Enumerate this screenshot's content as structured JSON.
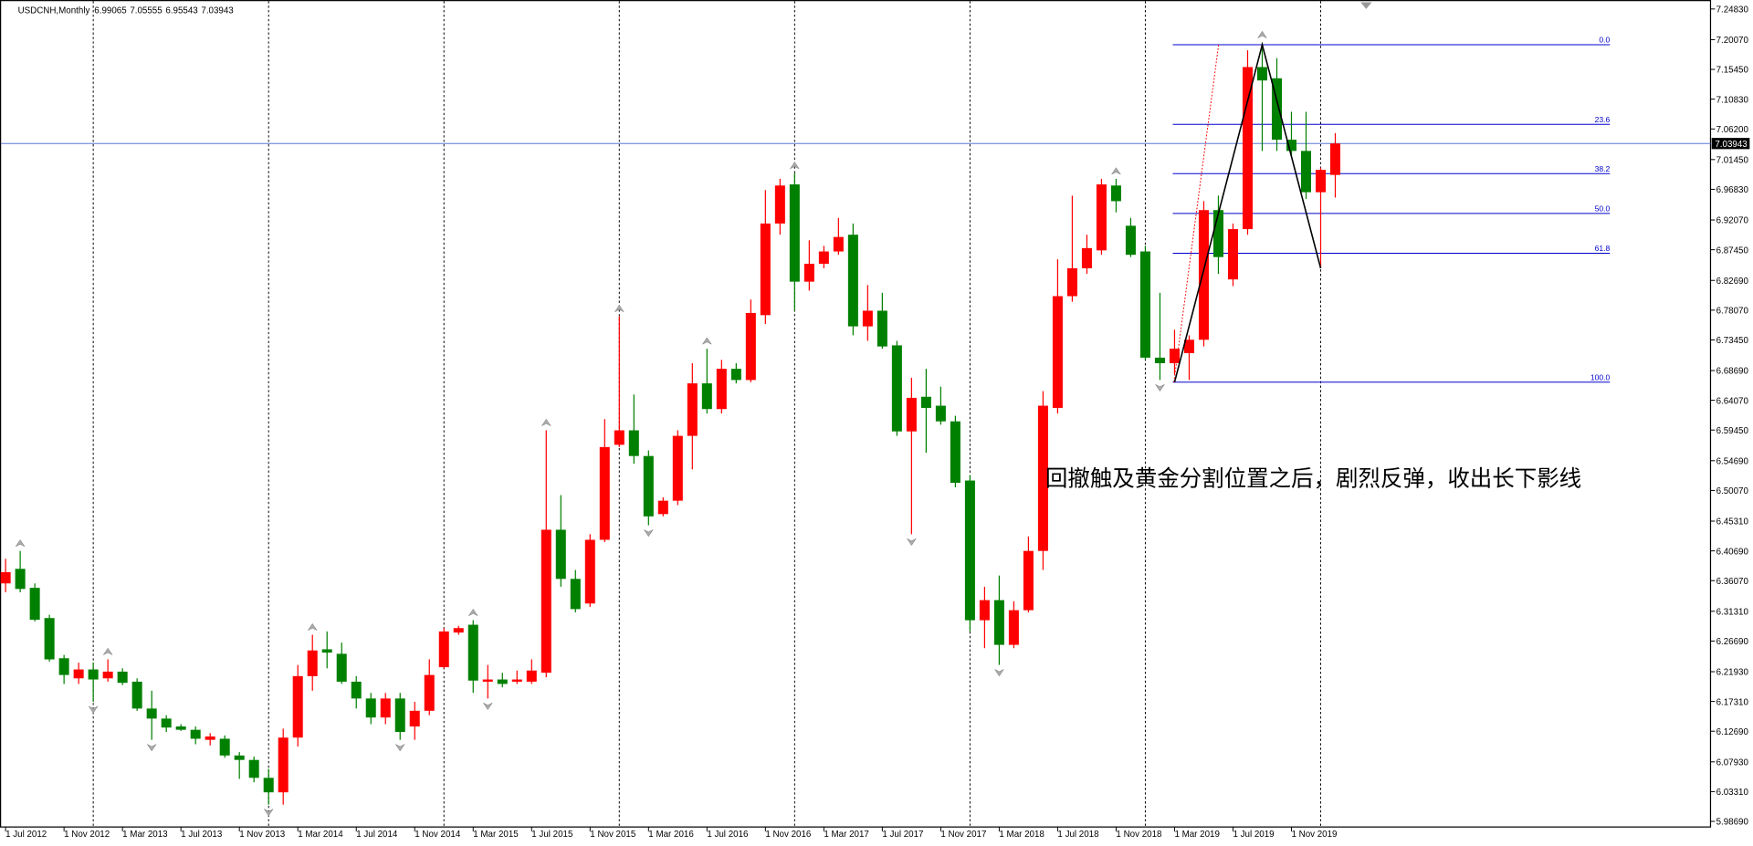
{
  "chart_data": {
    "type": "candlestick",
    "symbol": "USDCNH,Monthly",
    "annotation": "回撤触及黄金分割位置之后，剧烈反弹，收出长下影线",
    "up_color": "#ff0000",
    "down_color": "#008000",
    "categories": [
      "1 Jul 2012",
      null,
      null,
      null,
      "1 Nov 2012",
      null,
      null,
      null,
      "1 Mar 2013",
      null,
      null,
      null,
      "1 Jul 2013",
      null,
      null,
      null,
      "1 Nov 2013",
      null,
      null,
      null,
      "1 Mar 2014",
      null,
      null,
      null,
      "1 Jul 2014",
      null,
      null,
      null,
      "1 Nov 2014",
      null,
      null,
      null,
      "1 Mar 2015",
      null,
      null,
      null,
      "1 Jul 2015",
      null,
      null,
      null,
      "1 Nov 2015",
      null,
      null,
      null,
      "1 Mar 2016",
      null,
      null,
      null,
      "1 Jul 2016",
      null,
      null,
      null,
      "1 Nov 2016",
      null,
      null,
      null,
      "1 Mar 2017",
      null,
      null,
      null,
      "1 Jul 2017",
      null,
      null,
      null,
      "1 Nov 2017",
      null,
      null,
      null,
      "1 Mar 2018",
      null,
      null,
      null,
      "1 Jul 2018",
      null,
      null,
      null,
      "1 Nov 2018",
      null,
      null,
      null,
      "1 Mar 2019",
      null,
      null,
      null,
      "1 Jul 2019",
      null,
      null,
      null,
      "1 Nov 2019",
      null,
      null,
      null
    ],
    "open": [
      6.3564,
      6.379,
      6.3495,
      6.3026,
      6.2402,
      6.209,
      6.2228,
      6.209,
      6.2194,
      6.2038,
      6.1621,
      6.1465,
      6.1343,
      6.1291,
      6.1135,
      6.1152,
      6.0892,
      6.0823,
      6.0545,
      6.032,
      6.117,
      6.2124,
      6.2541,
      6.2471,
      6.2038,
      6.1777,
      6.1482,
      6.1777,
      6.1343,
      6.1586,
      6.2263,
      6.2801,
      6.2922,
      6.2038,
      6.2072,
      6.2038,
      6.2038,
      6.2177,
      6.4397,
      6.3634,
      6.3252,
      6.4241,
      6.5716,
      6.5941,
      6.5542,
      6.464,
      6.4848,
      6.5855,
      6.667,
      6.6271,
      6.6896,
      6.6722,
      6.7729,
      6.9152,
      6.9759,
      6.8249,
      6.8527,
      6.8718,
      6.8978,
      6.7555,
      6.7798,
      6.726,
      6.5924,
      6.6462,
      6.6323,
      6.608,
      6.5161,
      6.2992,
      6.3304,
      6.261,
      6.3148,
      6.4068,
      6.6289,
      6.8024,
      6.8457,
      6.8735,
      6.9742,
      6.9117,
      6.8718,
      6.7069,
      6.6983,
      6.7139,
      6.7347,
      6.936,
      6.8284,
      6.9065,
      7.1581,
      7.1407,
      7.0453,
      7.0279,
      6.9638,
      6.99065
    ],
    "high": [
      6.3946,
      6.4068,
      6.3564,
      6.3078,
      6.2454,
      6.2333,
      6.2333,
      6.2385,
      6.2246,
      6.209,
      6.1898,
      6.1517,
      6.1378,
      6.1343,
      6.1239,
      6.1204,
      6.0944,
      6.0875,
      6.0684,
      6.1309,
      6.2298,
      6.2766,
      6.2818,
      6.2645,
      6.2124,
      6.1864,
      6.1864,
      6.1864,
      6.1725,
      6.2385,
      6.287,
      6.2905,
      6.2992,
      6.2298,
      6.2177,
      6.2211,
      6.2385,
      6.5941,
      6.4935,
      6.3773,
      6.4328,
      6.6115,
      6.7711,
      6.6497,
      6.5629,
      6.49,
      6.5941,
      6.6983,
      6.7208,
      6.7035,
      6.6983,
      6.7972,
      6.9672,
      6.9846,
      6.9933,
      6.8891,
      6.8805,
      6.9239,
      6.9152,
      6.8197,
      6.8076,
      6.733,
      6.6757,
      6.6896,
      6.6619,
      6.6167,
      6.5247,
      6.3512,
      6.3686,
      6.3287,
      6.4293,
      6.6549,
      6.8596,
      6.9585,
      6.8978,
      6.9846,
      6.9846,
      6.9239,
      6.8805,
      6.8076,
      6.7503,
      6.7416,
      6.9499,
      6.9585,
      6.9152,
      7.1841,
      7.1963,
      7.172,
      7.0887,
      7.0887,
      7.0019,
      7.05555
    ],
    "low": [
      6.3426,
      6.3426,
      6.2974,
      6.235,
      6.2003,
      6.2003,
      6.1725,
      6.2038,
      6.1985,
      6.1586,
      6.1135,
      6.1257,
      6.1274,
      6.1066,
      6.1048,
      6.0857,
      6.0528,
      6.0476,
      6.0129,
      6.0129,
      6.1031,
      6.1898,
      6.2246,
      6.2003,
      6.1621,
      6.1378,
      6.1378,
      6.1135,
      6.1135,
      6.1517,
      6.2246,
      6.2766,
      6.1864,
      6.1777,
      6.1951,
      6.2003,
      6.2003,
      6.2107,
      6.3512,
      6.3113,
      6.32,
      6.4206,
      6.5681,
      6.5421,
      6.4466,
      6.4605,
      6.4779,
      6.5334,
      6.6202,
      6.6202,
      6.667,
      6.6688,
      6.759,
      6.8978,
      6.7798,
      6.811,
      6.8457,
      6.8666,
      6.7416,
      6.733,
      6.7208,
      6.5855,
      6.4328,
      6.5594,
      6.6028,
      6.5057,
      6.2818,
      6.2558,
      6.2298,
      6.2558,
      6.3113,
      6.3773,
      6.6202,
      6.7937,
      6.8371,
      6.8666,
      6.9325,
      6.8631,
      6.7035,
      6.6722,
      6.6809,
      6.6722,
      6.7243,
      6.8371,
      6.818,
      6.8978,
      7.0279,
      7.0279,
      7.0192,
      6.9534,
      6.8457,
      6.95543
    ],
    "close": [
      6.3738,
      6.3478,
      6.2999,
      6.2384,
      6.2142,
      6.2228,
      6.2072,
      6.2194,
      6.202,
      6.1621,
      6.1465,
      6.1326,
      6.1291,
      6.1152,
      6.1187,
      6.0892,
      6.0823,
      6.0545,
      6.032,
      6.117,
      6.2124,
      6.2523,
      6.2489,
      6.2038,
      6.1777,
      6.1482,
      6.1777,
      6.1257,
      6.1586,
      6.2142,
      6.2818,
      6.287,
      6.2055,
      6.2072,
      6.2003,
      6.2072,
      6.2211,
      6.4397,
      6.3634,
      6.3165,
      6.4241,
      6.5681,
      6.5941,
      6.5542,
      6.4605,
      6.4848,
      6.5855,
      6.667,
      6.6271,
      6.6896,
      6.6722,
      6.7763,
      6.9152,
      6.9742,
      6.8249,
      6.8527,
      6.8718,
      6.8943,
      6.7555,
      6.7798,
      6.7243,
      6.5924,
      6.6445,
      6.6289,
      6.608,
      6.5126,
      6.2992,
      6.3304,
      6.261,
      6.3148,
      6.4068,
      6.6323,
      6.8024,
      6.8457,
      6.877,
      6.9759,
      6.9499,
      6.8666,
      6.7069,
      6.6983,
      6.7208,
      6.7347,
      6.936,
      6.8631,
      6.9065,
      7.1581,
      7.1373,
      7.0453,
      7.0279,
      6.9638,
      6.9985,
      7.03943
    ],
    "ylim": [
      5.9782,
      7.2622
    ],
    "yticks": [
      {
        "value": 7.2483,
        "label": "7.24830"
      },
      {
        "value": 7.2007,
        "label": "7.20070"
      },
      {
        "value": 7.1545,
        "label": "7.15450"
      },
      {
        "value": 7.1083,
        "label": "7.10830"
      },
      {
        "value": 7.062,
        "label": "7.06200"
      },
      {
        "value": 7.0145,
        "label": "7.01450"
      },
      {
        "value": 6.9683,
        "label": "6.96830"
      },
      {
        "value": 6.9207,
        "label": "6.92070"
      },
      {
        "value": 6.8745,
        "label": "6.87450"
      },
      {
        "value": 6.8269,
        "label": "6.82690"
      },
      {
        "value": 6.7807,
        "label": "6.78070"
      },
      {
        "value": 6.7345,
        "label": "6.73450"
      },
      {
        "value": 6.6869,
        "label": "6.68690"
      },
      {
        "value": 6.6407,
        "label": "6.64070"
      },
      {
        "value": 6.5945,
        "label": "6.59450"
      },
      {
        "value": 6.5469,
        "label": "6.54690"
      },
      {
        "value": 6.5007,
        "label": "6.50070"
      },
      {
        "value": 6.4531,
        "label": "6.45310"
      },
      {
        "value": 6.4069,
        "label": "6.40690"
      },
      {
        "value": 6.3607,
        "label": "6.36070"
      },
      {
        "value": 6.3131,
        "label": "6.31310"
      },
      {
        "value": 6.2669,
        "label": "6.26690"
      },
      {
        "value": 6.2193,
        "label": "6.21930"
      },
      {
        "value": 6.1731,
        "label": "6.17310"
      },
      {
        "value": 6.1269,
        "label": "6.12690"
      },
      {
        "value": 6.0793,
        "label": "6.07930"
      },
      {
        "value": 6.0331,
        "label": "6.03310"
      },
      {
        "value": 5.9869,
        "label": "5.98690"
      }
    ],
    "fibonacci": {
      "high": 7.1928,
      "low": 6.6688,
      "color": "#0000cd",
      "levels": [
        {
          "value": 0,
          "label": "0.0"
        },
        23.6,
        38.2,
        {
          "value": 50,
          "label": "50.0"
        },
        61.8,
        {
          "value": 100,
          "label": "100.0"
        }
      ]
    },
    "zigzag": [
      6.6688,
      7.1928,
      6.8457
    ],
    "current_price_color": "#5a78d0"
  }
}
